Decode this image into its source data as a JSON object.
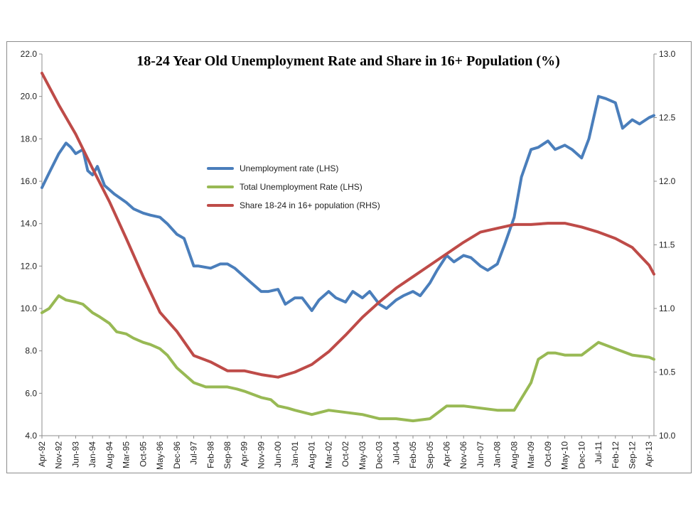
{
  "chart_data": {
    "type": "line",
    "title": "18-24 Year Old  Unemployment  Rate and Share in 16+ Population (%)",
    "xlabel": "",
    "ylabel_left": "",
    "ylabel_right": "",
    "ylim_left": [
      4.0,
      22.0
    ],
    "ylim_right": [
      10.0,
      13.0
    ],
    "yticks_left": [
      "4.0",
      "6.0",
      "8.0",
      "10.0",
      "12.0",
      "14.0",
      "16.0",
      "18.0",
      "20.0",
      "22.0"
    ],
    "yticks_right": [
      "10.0",
      "10.5",
      "11.0",
      "11.5",
      "12.0",
      "12.5",
      "13.0"
    ],
    "x_tick_labels": [
      "Apr-92",
      "Nov-92",
      "Jun-93",
      "Jan-94",
      "Aug-94",
      "Mar-95",
      "Oct-95",
      "May-96",
      "Dec-96",
      "Jul-97",
      "Feb-98",
      "Sep-98",
      "Apr-99",
      "Nov-99",
      "Jun-00",
      "Jan-01",
      "Aug-01",
      "Mar-02",
      "Oct-02",
      "May-03",
      "Dec-03",
      "Jul-04",
      "Feb-05",
      "Sep-05",
      "Apr-06",
      "Nov-06",
      "Jun-07",
      "Jan-08",
      "Aug-08",
      "Mar-09",
      "Oct-09",
      "May-10",
      "Dec-10",
      "Jul-11",
      "Feb-12",
      "Sep-12",
      "Apr-13"
    ],
    "x_range": [
      "Apr-92",
      "Jun-13"
    ],
    "legend_position": "center-left",
    "grid": false,
    "series": [
      {
        "name": "Unemployment rate (LHS)",
        "axis": "left",
        "color": "#4a7ebb",
        "x": [
          "Apr-92",
          "Jul-92",
          "Nov-92",
          "Feb-93",
          "Apr-93",
          "Jun-93",
          "Sep-93",
          "Nov-93",
          "Jan-94",
          "Mar-94",
          "Jun-94",
          "Aug-94",
          "Oct-94",
          "Mar-95",
          "Jun-95",
          "Oct-95",
          "Jan-96",
          "May-96",
          "Aug-96",
          "Dec-96",
          "Mar-97",
          "Jul-97",
          "Sep-97",
          "Feb-98",
          "Jun-98",
          "Sep-98",
          "Dec-98",
          "Apr-99",
          "Jul-99",
          "Nov-99",
          "Feb-00",
          "Jun-00",
          "Sep-00",
          "Jan-01",
          "Apr-01",
          "Aug-01",
          "Nov-01",
          "Mar-02",
          "Jun-02",
          "Oct-02",
          "Jan-03",
          "May-03",
          "Aug-03",
          "Dec-03",
          "Mar-04",
          "Jul-04",
          "Oct-04",
          "Feb-05",
          "May-05",
          "Sep-05",
          "Dec-05",
          "Apr-06",
          "Jul-06",
          "Nov-06",
          "Feb-07",
          "Jun-07",
          "Sep-07",
          "Jan-08",
          "Apr-08",
          "Aug-08",
          "Nov-08",
          "Mar-09",
          "Jun-09",
          "Oct-09",
          "Jan-10",
          "May-10",
          "Aug-10",
          "Dec-10",
          "Mar-11",
          "Jul-11",
          "Oct-11",
          "Feb-12",
          "May-12",
          "Sep-12",
          "Dec-12",
          "Apr-13",
          "Jun-13"
        ],
        "values": [
          15.7,
          16.4,
          17.3,
          17.8,
          17.6,
          17.3,
          17.5,
          16.5,
          16.3,
          16.7,
          15.8,
          15.6,
          15.4,
          15.0,
          14.7,
          14.5,
          14.4,
          14.3,
          14.0,
          13.5,
          13.3,
          12.0,
          12.0,
          11.9,
          12.1,
          12.1,
          11.9,
          11.5,
          11.2,
          10.8,
          10.8,
          10.9,
          10.2,
          10.5,
          10.5,
          9.9,
          10.4,
          10.8,
          10.5,
          10.3,
          10.8,
          10.5,
          10.8,
          10.2,
          10.0,
          10.4,
          10.6,
          10.8,
          10.6,
          11.2,
          11.8,
          12.5,
          12.2,
          12.5,
          12.4,
          12.0,
          11.8,
          12.1,
          13.0,
          14.3,
          16.2,
          17.5,
          17.6,
          17.9,
          17.5,
          17.7,
          17.5,
          17.1,
          18.0,
          20.0,
          19.9,
          19.7,
          18.5,
          18.9,
          18.7,
          19.0,
          19.1
        ]
      },
      {
        "name": "Total Unemployment Rate (LHS)",
        "axis": "left",
        "color": "#98b954",
        "x": [
          "Apr-92",
          "Jul-92",
          "Nov-92",
          "Feb-93",
          "Jun-93",
          "Sep-93",
          "Jan-94",
          "Apr-94",
          "Aug-94",
          "Nov-94",
          "Mar-95",
          "Jun-95",
          "Oct-95",
          "Jan-96",
          "May-96",
          "Aug-96",
          "Dec-96",
          "Jul-97",
          "Dec-97",
          "Feb-98",
          "Sep-98",
          "Jan-99",
          "Apr-99",
          "Nov-99",
          "Mar-00",
          "Jun-00",
          "Oct-00",
          "Jan-01",
          "Aug-01",
          "Mar-02",
          "Oct-02",
          "May-03",
          "Dec-03",
          "Jul-04",
          "Feb-05",
          "Sep-05",
          "Apr-06",
          "Nov-06",
          "Jun-07",
          "Jan-08",
          "Aug-08",
          "Mar-09",
          "Jun-09",
          "Oct-09",
          "Jan-10",
          "May-10",
          "Dec-10",
          "Jul-11",
          "Feb-12",
          "Sep-12",
          "Apr-13",
          "Jun-13"
        ],
        "values": [
          9.8,
          10.0,
          10.6,
          10.4,
          10.3,
          10.2,
          9.8,
          9.6,
          9.3,
          8.9,
          8.8,
          8.6,
          8.4,
          8.3,
          8.1,
          7.8,
          7.2,
          6.5,
          6.3,
          6.3,
          6.3,
          6.2,
          6.1,
          5.8,
          5.7,
          5.4,
          5.3,
          5.2,
          5.0,
          5.2,
          5.1,
          5.0,
          4.8,
          4.8,
          4.7,
          4.8,
          5.4,
          5.4,
          5.3,
          5.2,
          5.2,
          6.5,
          7.6,
          7.9,
          7.9,
          7.8,
          7.8,
          8.4,
          8.1,
          7.8,
          7.7,
          7.6
        ]
      },
      {
        "name": "Share 18-24 in 16+ population (RHS)",
        "axis": "right",
        "color": "#be4b48",
        "x": [
          "Apr-92",
          "Nov-92",
          "Jun-93",
          "Jan-94",
          "Aug-94",
          "Mar-95",
          "Oct-95",
          "May-96",
          "Dec-96",
          "Jul-97",
          "Feb-98",
          "Sep-98",
          "Apr-99",
          "Nov-99",
          "Jun-00",
          "Jan-01",
          "Aug-01",
          "Mar-02",
          "Oct-02",
          "May-03",
          "Dec-03",
          "Jul-04",
          "Feb-05",
          "Sep-05",
          "Apr-06",
          "Nov-06",
          "Jun-07",
          "Jan-08",
          "Aug-08",
          "Mar-09",
          "Oct-09",
          "May-10",
          "Dec-10",
          "Jul-11",
          "Feb-12",
          "Sep-12",
          "Apr-13",
          "Jun-13"
        ],
        "values": [
          12.85,
          12.6,
          12.37,
          12.1,
          11.84,
          11.55,
          11.25,
          10.97,
          10.82,
          10.63,
          10.58,
          10.51,
          10.51,
          10.48,
          10.46,
          10.5,
          10.56,
          10.66,
          10.79,
          10.93,
          11.05,
          11.16,
          11.25,
          11.34,
          11.43,
          11.52,
          11.6,
          11.63,
          11.66,
          11.66,
          11.67,
          11.67,
          11.64,
          11.6,
          11.55,
          11.48,
          11.34,
          11.27
        ]
      }
    ]
  }
}
